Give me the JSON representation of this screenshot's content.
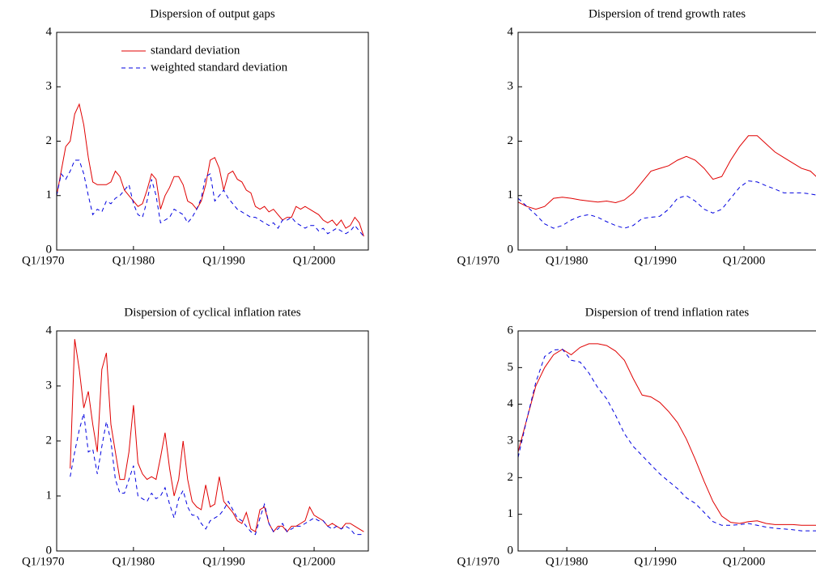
{
  "chart_data": [
    {
      "type": "line",
      "title": "Dispersion of output gaps",
      "legend": true,
      "legend_position": "upper center",
      "xlim": [
        1971.5,
        2006
      ],
      "ylim": [
        0,
        4
      ],
      "yticks": [
        0,
        1,
        2,
        3,
        4
      ],
      "xticks": [
        {
          "value": 1970,
          "label": "Q1/1970"
        },
        {
          "value": 1980,
          "label": "Q1/1980"
        },
        {
          "value": 1990,
          "label": "Q1/1990"
        },
        {
          "value": 2000,
          "label": "Q1/2000"
        }
      ],
      "x": [
        1971.5,
        1972,
        1972.5,
        1973,
        1973.5,
        1974,
        1974.5,
        1975,
        1975.5,
        1976,
        1976.5,
        1977,
        1977.5,
        1978,
        1978.5,
        1979,
        1979.5,
        1980,
        1980.5,
        1981,
        1981.5,
        1982,
        1982.5,
        1983,
        1983.5,
        1984,
        1984.5,
        1985,
        1985.5,
        1986,
        1986.5,
        1987,
        1987.5,
        1988,
        1988.5,
        1989,
        1989.5,
        1990,
        1990.5,
        1991,
        1991.5,
        1992,
        1992.5,
        1993,
        1993.5,
        1994,
        1994.5,
        1995,
        1995.5,
        1996,
        1996.5,
        1997,
        1997.5,
        1998,
        1998.5,
        1999,
        1999.5,
        2000,
        2000.5,
        2001,
        2001.5,
        2002,
        2002.5,
        2003,
        2003.5,
        2004,
        2004.5,
        2005,
        2005.5
      ],
      "series": [
        {
          "name": "standard deviation",
          "color": "#e00000",
          "dash": false,
          "values": [
            1.0,
            1.45,
            1.9,
            2.0,
            2.5,
            2.68,
            2.3,
            1.7,
            1.25,
            1.2,
            1.2,
            1.2,
            1.25,
            1.45,
            1.35,
            1.1,
            1.0,
            0.9,
            0.8,
            0.85,
            1.1,
            1.4,
            1.3,
            0.75,
            1.0,
            1.15,
            1.35,
            1.35,
            1.2,
            0.9,
            0.85,
            0.75,
            0.9,
            1.2,
            1.65,
            1.7,
            1.5,
            1.1,
            1.4,
            1.45,
            1.3,
            1.25,
            1.1,
            1.05,
            0.8,
            0.75,
            0.8,
            0.7,
            0.75,
            0.65,
            0.55,
            0.6,
            0.6,
            0.8,
            0.75,
            0.8,
            0.75,
            0.7,
            0.65,
            0.55,
            0.5,
            0.55,
            0.45,
            0.55,
            0.4,
            0.45,
            0.6,
            0.5,
            0.25
          ]
        },
        {
          "name": "weighted standard deviation",
          "color": "#0000e0",
          "dash": true,
          "values": [
            1.0,
            1.4,
            1.3,
            1.45,
            1.65,
            1.65,
            1.4,
            1.0,
            0.65,
            0.75,
            0.7,
            0.9,
            0.85,
            0.95,
            1.0,
            1.1,
            1.2,
            0.85,
            0.65,
            0.6,
            0.9,
            1.3,
            1.0,
            0.5,
            0.55,
            0.6,
            0.75,
            0.7,
            0.65,
            0.5,
            0.6,
            0.75,
            0.95,
            1.35,
            1.4,
            0.9,
            1.0,
            1.1,
            0.95,
            0.85,
            0.75,
            0.7,
            0.65,
            0.6,
            0.6,
            0.55,
            0.5,
            0.45,
            0.5,
            0.4,
            0.55,
            0.55,
            0.6,
            0.5,
            0.45,
            0.4,
            0.45,
            0.45,
            0.35,
            0.4,
            0.3,
            0.35,
            0.4,
            0.35,
            0.3,
            0.35,
            0.45,
            0.35,
            0.25
          ]
        }
      ]
    },
    {
      "type": "line",
      "title": "Dispersion of trend growth rates",
      "xlim": [
        1974.5,
        2008.5
      ],
      "ylim": [
        0,
        4
      ],
      "yticks": [
        0,
        1,
        2,
        3,
        4
      ],
      "xticks": [
        {
          "value": 1970,
          "label": "Q1/1970"
        },
        {
          "value": 1980,
          "label": "Q1/1980"
        },
        {
          "value": 1990,
          "label": "Q1/1990"
        },
        {
          "value": 2000,
          "label": "Q1/2000"
        }
      ],
      "x": [
        1974.5,
        1975.5,
        1976.5,
        1977.5,
        1978.5,
        1979.5,
        1980.5,
        1981.5,
        1982.5,
        1983.5,
        1984.5,
        1985.5,
        1986.5,
        1987.5,
        1988.5,
        1989.5,
        1990.5,
        1991.5,
        1992.5,
        1993.5,
        1994.5,
        1995.5,
        1996.5,
        1997.5,
        1998.5,
        1999.5,
        2000.5,
        2001.5,
        2002.5,
        2003.5,
        2004.5,
        2005.5,
        2006.5,
        2007.5,
        2008.5
      ],
      "series": [
        {
          "color": "#e00000",
          "dash": false,
          "values": [
            0.88,
            0.8,
            0.75,
            0.8,
            0.95,
            0.97,
            0.95,
            0.92,
            0.9,
            0.88,
            0.9,
            0.87,
            0.92,
            1.05,
            1.25,
            1.45,
            1.5,
            1.55,
            1.65,
            1.72,
            1.65,
            1.5,
            1.3,
            1.35,
            1.65,
            1.9,
            2.1,
            2.1,
            1.95,
            1.8,
            1.7,
            1.6,
            1.5,
            1.45,
            1.3
          ]
        },
        {
          "color": "#0000e0",
          "dash": true,
          "values": [
            0.95,
            0.8,
            0.65,
            0.48,
            0.4,
            0.45,
            0.55,
            0.62,
            0.65,
            0.6,
            0.52,
            0.45,
            0.4,
            0.45,
            0.58,
            0.6,
            0.62,
            0.75,
            0.95,
            1.0,
            0.9,
            0.75,
            0.68,
            0.75,
            0.95,
            1.15,
            1.27,
            1.25,
            1.18,
            1.12,
            1.05,
            1.05,
            1.05,
            1.03,
            1.0
          ]
        }
      ]
    },
    {
      "type": "line",
      "title": "Dispersion of cyclical inflation rates",
      "xlim": [
        1971.5,
        2006
      ],
      "ylim": [
        0,
        4
      ],
      "yticks": [
        0,
        1,
        2,
        3,
        4
      ],
      "xticks": [
        {
          "value": 1970,
          "label": "Q1/1970"
        },
        {
          "value": 1980,
          "label": "Q1/1980"
        },
        {
          "value": 1990,
          "label": "Q1/1990"
        },
        {
          "value": 2000,
          "label": "Q1/2000"
        }
      ],
      "x": [
        1973,
        1973.5,
        1974,
        1974.5,
        1975,
        1975.5,
        1976,
        1976.5,
        1977,
        1977.5,
        1978,
        1978.5,
        1979,
        1979.5,
        1980,
        1980.5,
        1981,
        1981.5,
        1982,
        1982.5,
        1983,
        1983.5,
        1984,
        1984.5,
        1985,
        1985.5,
        1986,
        1986.5,
        1987,
        1987.5,
        1988,
        1988.5,
        1989,
        1989.5,
        1990,
        1990.5,
        1991,
        1991.5,
        1992,
        1992.5,
        1993,
        1993.5,
        1994,
        1994.5,
        1995,
        1995.5,
        1996,
        1996.5,
        1997,
        1997.5,
        1998,
        1998.5,
        1999,
        1999.5,
        2000,
        2000.5,
        2001,
        2001.5,
        2002,
        2002.5,
        2003,
        2003.5,
        2004,
        2004.5,
        2005,
        2005.5
      ],
      "series": [
        {
          "color": "#e00000",
          "dash": false,
          "values": [
            1.5,
            3.85,
            3.3,
            2.6,
            2.9,
            2.3,
            1.8,
            3.3,
            3.6,
            2.3,
            1.8,
            1.3,
            1.3,
            1.8,
            2.65,
            1.6,
            1.4,
            1.3,
            1.35,
            1.3,
            1.7,
            2.15,
            1.5,
            1.0,
            1.3,
            2.0,
            1.3,
            0.9,
            0.8,
            0.75,
            1.2,
            0.8,
            0.85,
            1.35,
            0.9,
            0.8,
            0.7,
            0.55,
            0.5,
            0.7,
            0.4,
            0.35,
            0.75,
            0.8,
            0.5,
            0.35,
            0.45,
            0.45,
            0.35,
            0.45,
            0.45,
            0.5,
            0.55,
            0.8,
            0.65,
            0.6,
            0.55,
            0.45,
            0.5,
            0.45,
            0.4,
            0.5,
            0.5,
            0.45,
            0.4,
            0.35
          ]
        },
        {
          "color": "#0000e0",
          "dash": true,
          "values": [
            1.35,
            1.8,
            2.2,
            2.5,
            1.8,
            1.85,
            1.4,
            1.9,
            2.35,
            2.0,
            1.3,
            1.05,
            1.05,
            1.3,
            1.55,
            1.0,
            0.95,
            0.9,
            1.05,
            0.95,
            1.0,
            1.15,
            0.85,
            0.6,
            0.95,
            1.1,
            0.8,
            0.65,
            0.65,
            0.5,
            0.4,
            0.55,
            0.6,
            0.65,
            0.75,
            0.9,
            0.75,
            0.6,
            0.55,
            0.45,
            0.35,
            0.3,
            0.6,
            0.85,
            0.5,
            0.35,
            0.4,
            0.5,
            0.35,
            0.4,
            0.45,
            0.45,
            0.5,
            0.55,
            0.6,
            0.55,
            0.55,
            0.45,
            0.4,
            0.45,
            0.4,
            0.45,
            0.4,
            0.3,
            0.3,
            0.3
          ]
        }
      ]
    },
    {
      "type": "line",
      "title": "Dispersion of trend inflation rates",
      "xlim": [
        1974.5,
        2008.5
      ],
      "ylim": [
        0,
        6
      ],
      "yticks": [
        0,
        1,
        2,
        3,
        4,
        5,
        6
      ],
      "xticks": [
        {
          "value": 1970,
          "label": "Q1/1970"
        },
        {
          "value": 1980,
          "label": "Q1/1980"
        },
        {
          "value": 1990,
          "label": "Q1/1990"
        },
        {
          "value": 2000,
          "label": "Q1/2000"
        }
      ],
      "x": [
        1974.5,
        1975.5,
        1976.5,
        1977.5,
        1978.5,
        1979.5,
        1980.5,
        1981.5,
        1982.5,
        1983.5,
        1984.5,
        1985.5,
        1986.5,
        1987.5,
        1988.5,
        1989.5,
        1990.5,
        1991.5,
        1992.5,
        1993.5,
        1994.5,
        1995.5,
        1996.5,
        1997.5,
        1998.5,
        1999.5,
        2000.5,
        2001.5,
        2002.5,
        2003.5,
        2004.5,
        2005.5,
        2006.5,
        2007.5,
        2008.5
      ],
      "series": [
        {
          "color": "#e00000",
          "dash": false,
          "values": [
            2.7,
            3.6,
            4.5,
            5.0,
            5.35,
            5.5,
            5.35,
            5.55,
            5.65,
            5.65,
            5.6,
            5.45,
            5.2,
            4.7,
            4.25,
            4.2,
            4.05,
            3.8,
            3.5,
            3.05,
            2.5,
            1.9,
            1.35,
            0.95,
            0.78,
            0.75,
            0.8,
            0.82,
            0.75,
            0.72,
            0.72,
            0.72,
            0.7,
            0.7,
            0.7
          ]
        },
        {
          "color": "#0000e0",
          "dash": true,
          "values": [
            2.55,
            3.6,
            4.6,
            5.3,
            5.48,
            5.5,
            5.2,
            5.15,
            4.85,
            4.45,
            4.15,
            3.7,
            3.2,
            2.85,
            2.6,
            2.35,
            2.1,
            1.9,
            1.7,
            1.45,
            1.3,
            1.05,
            0.8,
            0.7,
            0.7,
            0.72,
            0.75,
            0.7,
            0.65,
            0.62,
            0.6,
            0.58,
            0.55,
            0.55,
            0.55
          ]
        }
      ]
    }
  ]
}
